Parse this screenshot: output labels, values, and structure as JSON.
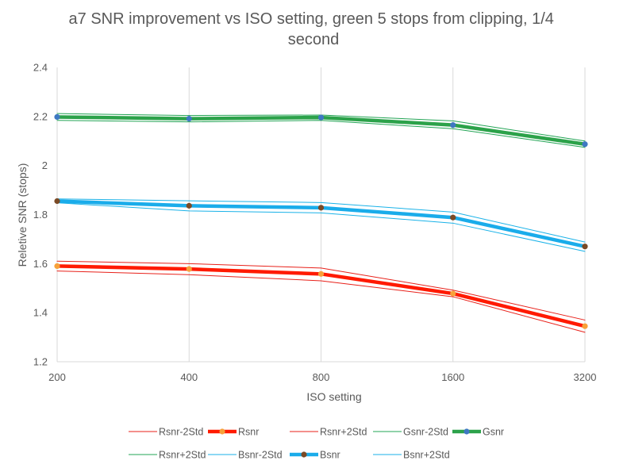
{
  "chart_data": {
    "type": "line",
    "title": "a7 SNR improvement vs ISO setting, green 5 stops from clipping, 1/4 second",
    "xlabel": "ISO setting",
    "ylabel": "Reletive SNR (stops)",
    "categories": [
      "200",
      "400",
      "800",
      "1600",
      "3200"
    ],
    "ylim": [
      1.2,
      2.4
    ],
    "yticks": [
      "1.2",
      "1.4",
      "1.6",
      "1.8",
      "2",
      "2.2",
      "2.4"
    ],
    "grid": "vertical",
    "legend_position": "bottom",
    "series": [
      {
        "name": "Rsnr-2Std",
        "values": [
          1.57,
          1.555,
          1.53,
          1.465,
          1.32
        ],
        "color": "#e8211a",
        "role": "band"
      },
      {
        "name": "Rsnr",
        "values": [
          1.59,
          1.578,
          1.558,
          1.478,
          1.345
        ],
        "color": "#ff1a00",
        "marker": "#f7a13a",
        "role": "main"
      },
      {
        "name": "Rsnr+2Std",
        "values": [
          1.61,
          1.6,
          1.582,
          1.492,
          1.37
        ],
        "color": "#e8211a",
        "role": "band"
      },
      {
        "name": "Gsnr-2Std",
        "values": [
          2.184,
          2.178,
          2.184,
          2.15,
          2.074
        ],
        "color": "#23a455",
        "role": "band"
      },
      {
        "name": "Gsnr",
        "values": [
          2.198,
          2.191,
          2.196,
          2.165,
          2.087
        ],
        "color": "#2ca24a",
        "marker": "#3e78c2",
        "role": "main"
      },
      {
        "name": "Rsnr+2Std",
        "values": [
          2.212,
          2.204,
          2.206,
          2.182,
          2.1
        ],
        "color": "#23a455",
        "role": "band"
      },
      {
        "name": "Bsnr-2Std",
        "values": [
          1.848,
          1.815,
          1.807,
          1.765,
          1.65
        ],
        "color": "#1ab2e8",
        "role": "band"
      },
      {
        "name": "Bsnr",
        "values": [
          1.855,
          1.836,
          1.828,
          1.788,
          1.67
        ],
        "color": "#1aacea",
        "marker": "#7a4a26",
        "role": "main"
      },
      {
        "name": "Bsnr+2Std",
        "values": [
          1.864,
          1.856,
          1.849,
          1.81,
          1.688
        ],
        "color": "#1ab2e8",
        "role": "band"
      }
    ]
  }
}
